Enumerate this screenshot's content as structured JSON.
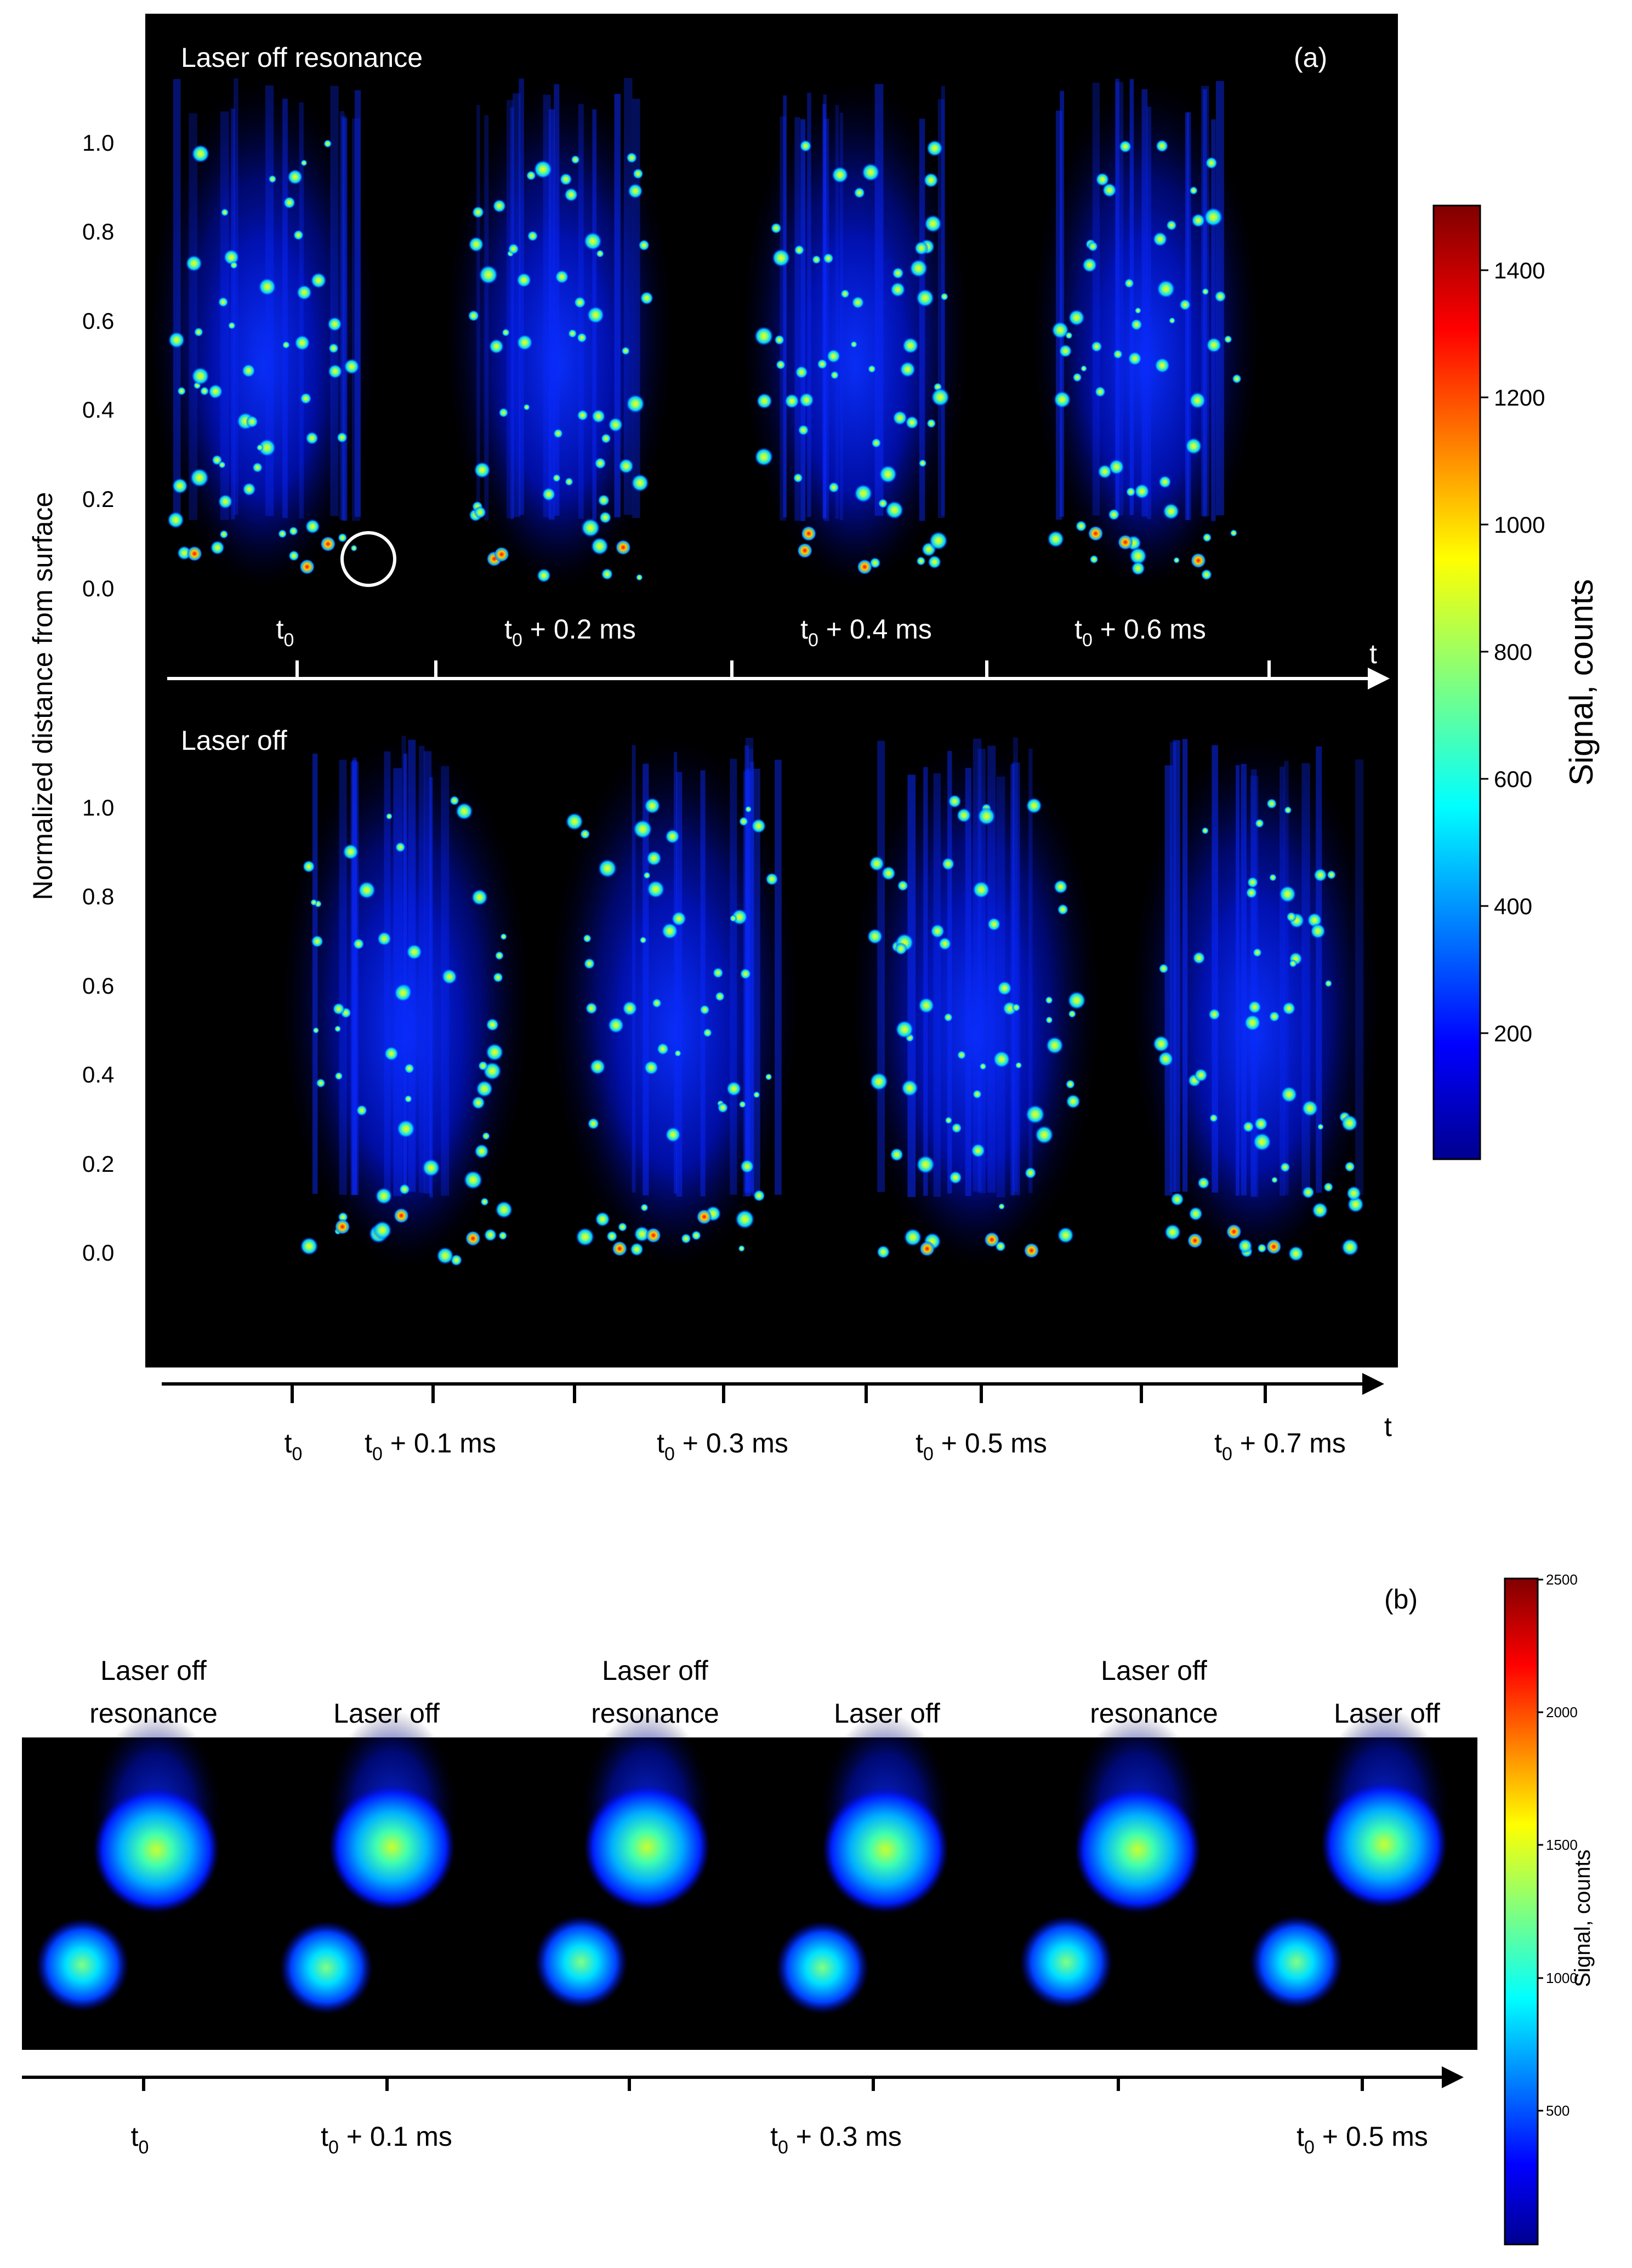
{
  "panel_a": {
    "label": "(a)",
    "y_axis_label": "Normalized distance from surface",
    "y_ticks": [
      "1.0",
      "0.8",
      "0.6",
      "0.4",
      "0.2",
      "0.0"
    ],
    "top": {
      "title": "Laser off resonance",
      "time_labels": [
        {
          "base": "t",
          "sub": "0",
          "rest": ""
        },
        {
          "base": "t",
          "sub": "0",
          "rest": " + 0.2 ms"
        },
        {
          "base": "t",
          "sub": "0",
          "rest": " + 0.4 ms"
        },
        {
          "base": "t",
          "sub": "0",
          "rest": " + 0.6 ms"
        }
      ],
      "axis_end": "t"
    },
    "bottom": {
      "title": "Laser off",
      "time_labels": [
        {
          "base": "t",
          "sub": "0",
          "rest": ""
        },
        {
          "base": "t",
          "sub": "0",
          "rest": " + 0.1 ms"
        },
        {
          "base": "t",
          "sub": "0",
          "rest": " + 0.3 ms"
        },
        {
          "base": "t",
          "sub": "0",
          "rest": " + 0.5 ms"
        },
        {
          "base": "t",
          "sub": "0",
          "rest": " + 0.7 ms"
        }
      ],
      "axis_end": "t"
    },
    "colorbar": {
      "label": "Signal, counts",
      "ticks": [
        "1400",
        "1200",
        "1000",
        "800",
        "600",
        "400",
        "200"
      ],
      "range": [
        0,
        1500
      ]
    }
  },
  "panel_b": {
    "label": "(b)",
    "column_titles": [
      [
        "Laser off",
        "resonance"
      ],
      [
        "Laser off"
      ],
      [
        "Laser off",
        "resonance"
      ],
      [
        "Laser off"
      ],
      [
        "Laser off",
        "resonance"
      ],
      [
        "Laser off"
      ]
    ],
    "time_labels": [
      {
        "base": "t",
        "sub": "0",
        "rest": ""
      },
      {
        "base": "t",
        "sub": "0",
        "rest": " + 0.1 ms"
      },
      {
        "base": "t",
        "sub": "0",
        "rest": " + 0.3 ms"
      },
      {
        "base": "t",
        "sub": "0",
        "rest": " + 0.5 ms"
      }
    ],
    "colorbar": {
      "label": "Signal, counts",
      "ticks": [
        "2500",
        "2000",
        "1500",
        "1000",
        "500"
      ],
      "range": [
        0,
        2500
      ]
    }
  },
  "colors": {
    "background": "#000000",
    "jet": [
      "#00008f",
      "#0000ff",
      "#00ffff",
      "#7fff7f",
      "#ffff00",
      "#ff0000",
      "#800000"
    ]
  }
}
